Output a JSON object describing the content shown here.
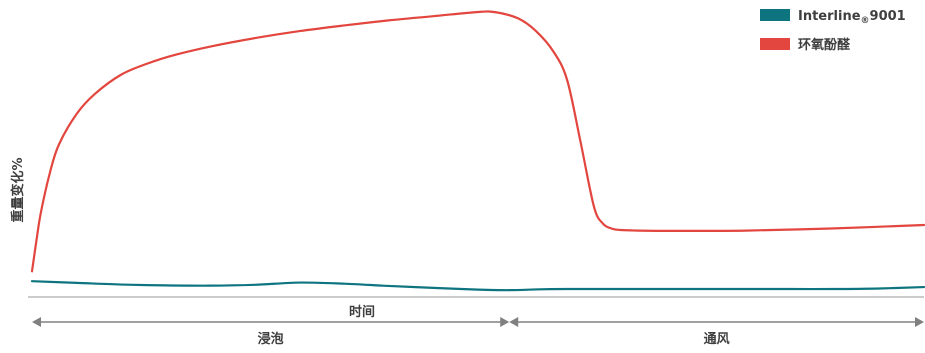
{
  "chart_data": {
    "type": "line",
    "title": "",
    "ylabel": "重量变化%",
    "xlabel": "时间",
    "x_range": [
      0,
      100
    ],
    "y_range": [
      0,
      100
    ],
    "grid": false,
    "legend_position": "top-right",
    "phases": [
      {
        "label": "浸泡",
        "x_start": 0,
        "x_end": 53.5
      },
      {
        "label": "通风",
        "x_start": 53.5,
        "x_end": 100
      }
    ],
    "series": [
      {
        "name": "Interline",
        "name_sub": "®",
        "name_suffix": "9001",
        "color": "#0e7480",
        "x": [
          0,
          5,
          10,
          15,
          20,
          25,
          30,
          35,
          40,
          45,
          50,
          53.5,
          57,
          60,
          65,
          70,
          75,
          80,
          85,
          90,
          95,
          100
        ],
        "y": [
          3.5,
          2.9,
          2.3,
          2.0,
          1.9,
          2.2,
          3.0,
          2.6,
          1.8,
          1.1,
          0.5,
          0.3,
          0.6,
          0.7,
          0.7,
          0.7,
          0.7,
          0.7,
          0.7,
          0.7,
          0.9,
          1.4
        ]
      },
      {
        "name": "环氧酚醛",
        "color": "#e2463e",
        "x": [
          0,
          0.5,
          1,
          2,
          3,
          5,
          7,
          10,
          13,
          16,
          20,
          25,
          30,
          35,
          40,
          45,
          50,
          52,
          54.5,
          56.5,
          58.5,
          60,
          61.5,
          63,
          64,
          65,
          66,
          68,
          72,
          80,
          90,
          100
        ],
        "y": [
          7,
          18,
          28,
          42,
          52,
          63,
          70,
          77,
          81,
          84,
          87,
          90,
          92.5,
          94.5,
          96.3,
          97.8,
          99.3,
          99.2,
          97,
          92.5,
          85,
          75,
          53,
          30,
          24,
          22.2,
          21.7,
          21.5,
          21.4,
          21.5,
          22.3,
          23.5
        ]
      }
    ]
  }
}
